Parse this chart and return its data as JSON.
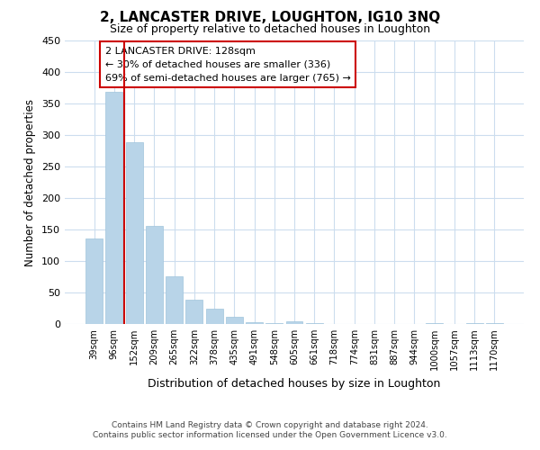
{
  "title": "2, LANCASTER DRIVE, LOUGHTON, IG10 3NQ",
  "subtitle": "Size of property relative to detached houses in Loughton",
  "xlabel": "Distribution of detached houses by size in Loughton",
  "ylabel": "Number of detached properties",
  "bar_labels": [
    "39sqm",
    "96sqm",
    "152sqm",
    "209sqm",
    "265sqm",
    "322sqm",
    "378sqm",
    "435sqm",
    "491sqm",
    "548sqm",
    "605sqm",
    "661sqm",
    "718sqm",
    "774sqm",
    "831sqm",
    "887sqm",
    "944sqm",
    "1000sqm",
    "1057sqm",
    "1113sqm",
    "1170sqm"
  ],
  "bar_heights": [
    136,
    369,
    289,
    156,
    76,
    38,
    25,
    11,
    3,
    1,
    5,
    1,
    0,
    0,
    0,
    0,
    0,
    2,
    0,
    1,
    1
  ],
  "bar_color": "#b8d4e8",
  "bar_edge_color": "#a0c4dc",
  "vline_color": "#cc0000",
  "box_edge_color": "#cc0000",
  "annotation_title": "2 LANCASTER DRIVE: 128sqm",
  "annotation_line1": "← 30% of detached houses are smaller (336)",
  "annotation_line2": "69% of semi-detached houses are larger (765) →",
  "vline_index": 2,
  "ylim": [
    0,
    450
  ],
  "yticks": [
    0,
    50,
    100,
    150,
    200,
    250,
    300,
    350,
    400,
    450
  ],
  "grid_color": "#ccddee",
  "background_color": "#ffffff",
  "footer1": "Contains HM Land Registry data © Crown copyright and database right 2024.",
  "footer2": "Contains public sector information licensed under the Open Government Licence v3.0."
}
